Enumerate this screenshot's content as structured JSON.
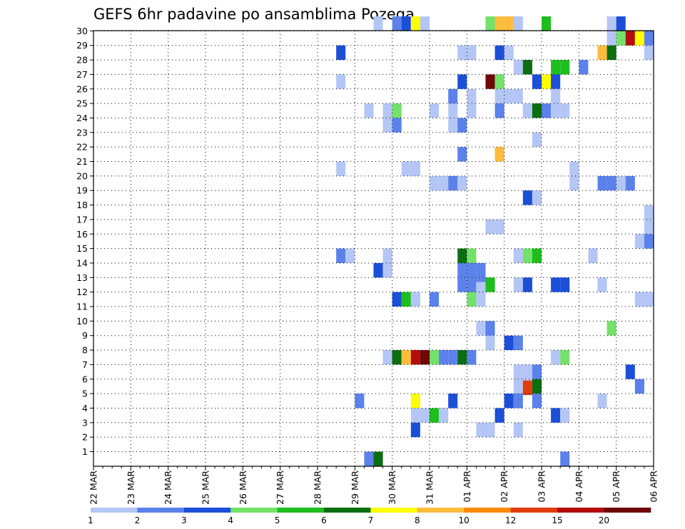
{
  "chart_data": {
    "type": "heatmap",
    "title": "GEFS 6hr padavine po ansamblima Pozega",
    "x_tick_labels": [
      "22 MAR",
      "23 MAR",
      "24 MAR",
      "25 MAR",
      "26 MAR",
      "27 MAR",
      "28 MAR",
      "29 MAR",
      "30 MAR",
      "31 MAR",
      "01 APR",
      "02 APR",
      "03 APR",
      "04 APR",
      "05 APR",
      "06 APR"
    ],
    "y_tick_labels": [
      "1",
      "2",
      "3",
      "4",
      "5",
      "6",
      "7",
      "8",
      "9",
      "10",
      "11",
      "12",
      "13",
      "14",
      "15",
      "16",
      "17",
      "18",
      "19",
      "20",
      "21",
      "22",
      "23",
      "24",
      "25",
      "26",
      "27",
      "28",
      "29",
      "30"
    ],
    "xlim": [
      0,
      60
    ],
    "ylim": [
      0,
      30
    ],
    "grid": true,
    "legend": {
      "position": "bottom",
      "labels": [
        "1",
        "2",
        "3",
        "4",
        "5",
        "6",
        "7",
        "8",
        "10",
        "12",
        "15",
        "20"
      ],
      "colors": [
        "#b4c6f5",
        "#5b82ea",
        "#1c4fd8",
        "#74e16a",
        "#1ebe1e",
        "#0b6e11",
        "#ffff00",
        "#fdbc3c",
        "#ff8a00",
        "#e23b0e",
        "#b40d0d",
        "#6e0808"
      ]
    },
    "cells": [
      {
        "x": 30.5,
        "y": 29.5,
        "c": 0
      },
      {
        "x": 32.5,
        "y": 29.5,
        "c": 1
      },
      {
        "x": 33.5,
        "y": 29.5,
        "c": 2
      },
      {
        "x": 34.5,
        "y": 29.5,
        "c": 6
      },
      {
        "x": 35.5,
        "y": 29.5,
        "c": 0
      },
      {
        "x": 42.5,
        "y": 29.5,
        "c": 3
      },
      {
        "x": 43.5,
        "y": 29.5,
        "c": 7
      },
      {
        "x": 44.5,
        "y": 29.5,
        "c": 7
      },
      {
        "x": 45.5,
        "y": 29.5,
        "c": 0
      },
      {
        "x": 48.5,
        "y": 29.5,
        "c": 4
      },
      {
        "x": 55.5,
        "y": 29.5,
        "c": 0
      },
      {
        "x": 56.5,
        "y": 29.5,
        "c": 2
      },
      {
        "x": 55.5,
        "y": 28.5,
        "c": 0
      },
      {
        "x": 56.5,
        "y": 28.5,
        "c": 3
      },
      {
        "x": 57.5,
        "y": 28.5,
        "c": 10
      },
      {
        "x": 58.5,
        "y": 28.5,
        "c": 6
      },
      {
        "x": 59.5,
        "y": 28.5,
        "c": 1
      },
      {
        "x": 26.5,
        "y": 27.5,
        "c": 2
      },
      {
        "x": 39.5,
        "y": 27.5,
        "c": 0
      },
      {
        "x": 40.5,
        "y": 27.5,
        "c": 0
      },
      {
        "x": 43.5,
        "y": 27.5,
        "c": 2
      },
      {
        "x": 44.5,
        "y": 27.5,
        "c": 0
      },
      {
        "x": 54.5,
        "y": 27.5,
        "c": 7
      },
      {
        "x": 55.5,
        "y": 27.5,
        "c": 5
      },
      {
        "x": 59.5,
        "y": 27.5,
        "c": 0
      },
      {
        "x": 45.5,
        "y": 26.5,
        "c": 0
      },
      {
        "x": 46.5,
        "y": 26.5,
        "c": 5
      },
      {
        "x": 49.5,
        "y": 26.5,
        "c": 4
      },
      {
        "x": 50.5,
        "y": 26.5,
        "c": 4
      },
      {
        "x": 52.5,
        "y": 26.5,
        "c": 1
      },
      {
        "x": 26.5,
        "y": 25.5,
        "c": 0
      },
      {
        "x": 39.5,
        "y": 25.5,
        "c": 2
      },
      {
        "x": 42.5,
        "y": 25.5,
        "c": 11
      },
      {
        "x": 43.5,
        "y": 25.5,
        "c": 3
      },
      {
        "x": 47.5,
        "y": 25.5,
        "c": 2
      },
      {
        "x": 48.5,
        "y": 25.5,
        "c": 6
      },
      {
        "x": 49.5,
        "y": 25.5,
        "c": 2
      },
      {
        "x": 38.5,
        "y": 24.5,
        "c": 1
      },
      {
        "x": 40.5,
        "y": 24.5,
        "c": 0
      },
      {
        "x": 43.5,
        "y": 24.5,
        "c": 0
      },
      {
        "x": 44.5,
        "y": 24.5,
        "c": 0
      },
      {
        "x": 45.5,
        "y": 24.5,
        "c": 0
      },
      {
        "x": 49.5,
        "y": 24.5,
        "c": 0
      },
      {
        "x": 29.5,
        "y": 23.5,
        "c": 0
      },
      {
        "x": 31.5,
        "y": 23.5,
        "c": 0
      },
      {
        "x": 32.5,
        "y": 23.5,
        "c": 3
      },
      {
        "x": 36.5,
        "y": 23.5,
        "c": 0
      },
      {
        "x": 38.5,
        "y": 23.5,
        "c": 0
      },
      {
        "x": 40.5,
        "y": 23.5,
        "c": 0
      },
      {
        "x": 43.5,
        "y": 23.5,
        "c": 1
      },
      {
        "x": 46.5,
        "y": 23.5,
        "c": 0
      },
      {
        "x": 47.5,
        "y": 23.5,
        "c": 5
      },
      {
        "x": 48.5,
        "y": 23.5,
        "c": 1
      },
      {
        "x": 49.5,
        "y": 23.5,
        "c": 0
      },
      {
        "x": 50.5,
        "y": 23.5,
        "c": 0
      },
      {
        "x": 31.5,
        "y": 22.5,
        "c": 0
      },
      {
        "x": 32.5,
        "y": 22.5,
        "c": 1
      },
      {
        "x": 38.5,
        "y": 22.5,
        "c": 0
      },
      {
        "x": 39.5,
        "y": 22.5,
        "c": 1
      },
      {
        "x": 47.5,
        "y": 21.5,
        "c": 0
      },
      {
        "x": 39.5,
        "y": 20.5,
        "c": 1
      },
      {
        "x": 43.5,
        "y": 20.5,
        "c": 7
      },
      {
        "x": 26.5,
        "y": 19.5,
        "c": 0
      },
      {
        "x": 33.5,
        "y": 19.5,
        "c": 0
      },
      {
        "x": 34.5,
        "y": 19.5,
        "c": 0
      },
      {
        "x": 51.5,
        "y": 19.5,
        "c": 0
      },
      {
        "x": 36.5,
        "y": 18.5,
        "c": 0
      },
      {
        "x": 37.5,
        "y": 18.5,
        "c": 0
      },
      {
        "x": 38.5,
        "y": 18.5,
        "c": 1
      },
      {
        "x": 39.5,
        "y": 18.5,
        "c": 0
      },
      {
        "x": 51.5,
        "y": 18.5,
        "c": 0
      },
      {
        "x": 54.5,
        "y": 18.5,
        "c": 1
      },
      {
        "x": 55.5,
        "y": 18.5,
        "c": 1
      },
      {
        "x": 56.5,
        "y": 18.5,
        "c": 0
      },
      {
        "x": 57.5,
        "y": 18.5,
        "c": 1
      },
      {
        "x": 46.5,
        "y": 17.5,
        "c": 2
      },
      {
        "x": 47.5,
        "y": 17.5,
        "c": 0
      },
      {
        "x": 59.5,
        "y": 16.5,
        "c": 0
      },
      {
        "x": 42.5,
        "y": 15.5,
        "c": 0
      },
      {
        "x": 43.5,
        "y": 15.5,
        "c": 0
      },
      {
        "x": 59.5,
        "y": 15.5,
        "c": 0
      },
      {
        "x": 58.5,
        "y": 14.5,
        "c": 0
      },
      {
        "x": 59.5,
        "y": 14.5,
        "c": 1
      },
      {
        "x": 26.5,
        "y": 13.5,
        "c": 1
      },
      {
        "x": 27.5,
        "y": 13.5,
        "c": 0
      },
      {
        "x": 31.5,
        "y": 13.5,
        "c": 0
      },
      {
        "x": 39.5,
        "y": 13.5,
        "c": 5
      },
      {
        "x": 40.5,
        "y": 13.5,
        "c": 3
      },
      {
        "x": 45.5,
        "y": 13.5,
        "c": 0
      },
      {
        "x": 46.5,
        "y": 13.5,
        "c": 3
      },
      {
        "x": 47.5,
        "y": 13.5,
        "c": 4
      },
      {
        "x": 53.5,
        "y": 13.5,
        "c": 0
      },
      {
        "x": 30.5,
        "y": 12.5,
        "c": 2
      },
      {
        "x": 31.5,
        "y": 12.5,
        "c": 0
      },
      {
        "x": 39.5,
        "y": 12.5,
        "c": 1
      },
      {
        "x": 40.5,
        "y": 12.5,
        "c": 1
      },
      {
        "x": 41.5,
        "y": 12.5,
        "c": 1
      },
      {
        "x": 39.5,
        "y": 11.5,
        "c": 1
      },
      {
        "x": 40.5,
        "y": 11.5,
        "c": 1
      },
      {
        "x": 41.5,
        "y": 11.5,
        "c": 1
      },
      {
        "x": 41.5,
        "y": 11.2,
        "c": 0
      },
      {
        "x": 42.5,
        "y": 11.5,
        "c": 4
      },
      {
        "x": 45.5,
        "y": 11.5,
        "c": 0
      },
      {
        "x": 46.5,
        "y": 11.5,
        "c": 2
      },
      {
        "x": 49.5,
        "y": 11.5,
        "c": 2
      },
      {
        "x": 50.5,
        "y": 11.5,
        "c": 2
      },
      {
        "x": 54.5,
        "y": 11.5,
        "c": 0
      },
      {
        "x": 32.5,
        "y": 10.5,
        "c": 2
      },
      {
        "x": 33.5,
        "y": 10.5,
        "c": 4
      },
      {
        "x": 34.5,
        "y": 10.5,
        "c": 0
      },
      {
        "x": 36.5,
        "y": 10.5,
        "c": 1
      },
      {
        "x": 40.5,
        "y": 10.5,
        "c": 3
      },
      {
        "x": 41.5,
        "y": 10.5,
        "c": 0
      },
      {
        "x": 58.5,
        "y": 10.5,
        "c": 0
      },
      {
        "x": 59.5,
        "y": 10.5,
        "c": 0
      },
      {
        "x": 41.5,
        "y": 8.5,
        "c": 0
      },
      {
        "x": 42.5,
        "y": 8.5,
        "c": 1
      },
      {
        "x": 55.5,
        "y": 8.5,
        "c": 3
      },
      {
        "x": 42.5,
        "y": 7.5,
        "c": 0
      },
      {
        "x": 44.5,
        "y": 7.5,
        "c": 2
      },
      {
        "x": 45.5,
        "y": 7.5,
        "c": 1
      },
      {
        "x": 31.5,
        "y": 6.5,
        "c": 0
      },
      {
        "x": 32.5,
        "y": 6.5,
        "c": 5
      },
      {
        "x": 33.5,
        "y": 6.5,
        "c": 7
      },
      {
        "x": 34.5,
        "y": 6.5,
        "c": 10
      },
      {
        "x": 35.5,
        "y": 6.5,
        "c": 11
      },
      {
        "x": 36.5,
        "y": 6.5,
        "c": 3
      },
      {
        "x": 37.5,
        "y": 6.5,
        "c": 1
      },
      {
        "x": 38.5,
        "y": 6.5,
        "c": 1
      },
      {
        "x": 39.5,
        "y": 6.5,
        "c": 5
      },
      {
        "x": 40.5,
        "y": 6.5,
        "c": 1
      },
      {
        "x": 49.5,
        "y": 6.5,
        "c": 0
      },
      {
        "x": 50.5,
        "y": 6.5,
        "c": 3
      },
      {
        "x": 45.5,
        "y": 5.5,
        "c": 0
      },
      {
        "x": 46.5,
        "y": 5.5,
        "c": 0
      },
      {
        "x": 47.5,
        "y": 5.5,
        "c": 1
      },
      {
        "x": 57.5,
        "y": 5.5,
        "c": 2
      },
      {
        "x": 45.5,
        "y": 4.5,
        "c": 0
      },
      {
        "x": 46.5,
        "y": 4.5,
        "c": 0
      },
      {
        "x": 46.5,
        "y": 4.4,
        "c": 9
      },
      {
        "x": 47.5,
        "y": 4.5,
        "c": 5
      },
      {
        "x": 58.5,
        "y": 4.5,
        "c": 1
      },
      {
        "x": 28.5,
        "y": 3.5,
        "c": 1
      },
      {
        "x": 34.5,
        "y": 3.5,
        "c": 6
      },
      {
        "x": 38.5,
        "y": 3.5,
        "c": 2
      },
      {
        "x": 44.5,
        "y": 3.5,
        "c": 2
      },
      {
        "x": 45.5,
        "y": 3.5,
        "c": 1
      },
      {
        "x": 47.5,
        "y": 3.5,
        "c": 1
      },
      {
        "x": 54.5,
        "y": 3.5,
        "c": 0
      },
      {
        "x": 34.5,
        "y": 2.5,
        "c": 0
      },
      {
        "x": 35.5,
        "y": 2.5,
        "c": 0
      },
      {
        "x": 36.5,
        "y": 2.5,
        "c": 4
      },
      {
        "x": 37.5,
        "y": 2.5,
        "c": 0
      },
      {
        "x": 43.5,
        "y": 2.5,
        "c": 2
      },
      {
        "x": 49.5,
        "y": 2.5,
        "c": 2
      },
      {
        "x": 50.5,
        "y": 2.5,
        "c": 0
      },
      {
        "x": 34.5,
        "y": 1.5,
        "c": 2
      },
      {
        "x": 41.5,
        "y": 1.5,
        "c": 0
      },
      {
        "x": 42.5,
        "y": 1.5,
        "c": 0
      },
      {
        "x": 45.5,
        "y": 1.5,
        "c": 0
      },
      {
        "x": 29.5,
        "y": -0.5,
        "c": 1
      },
      {
        "x": 30.5,
        "y": -0.5,
        "c": 5
      },
      {
        "x": 50.5,
        "y": -0.5,
        "c": 1
      }
    ]
  }
}
